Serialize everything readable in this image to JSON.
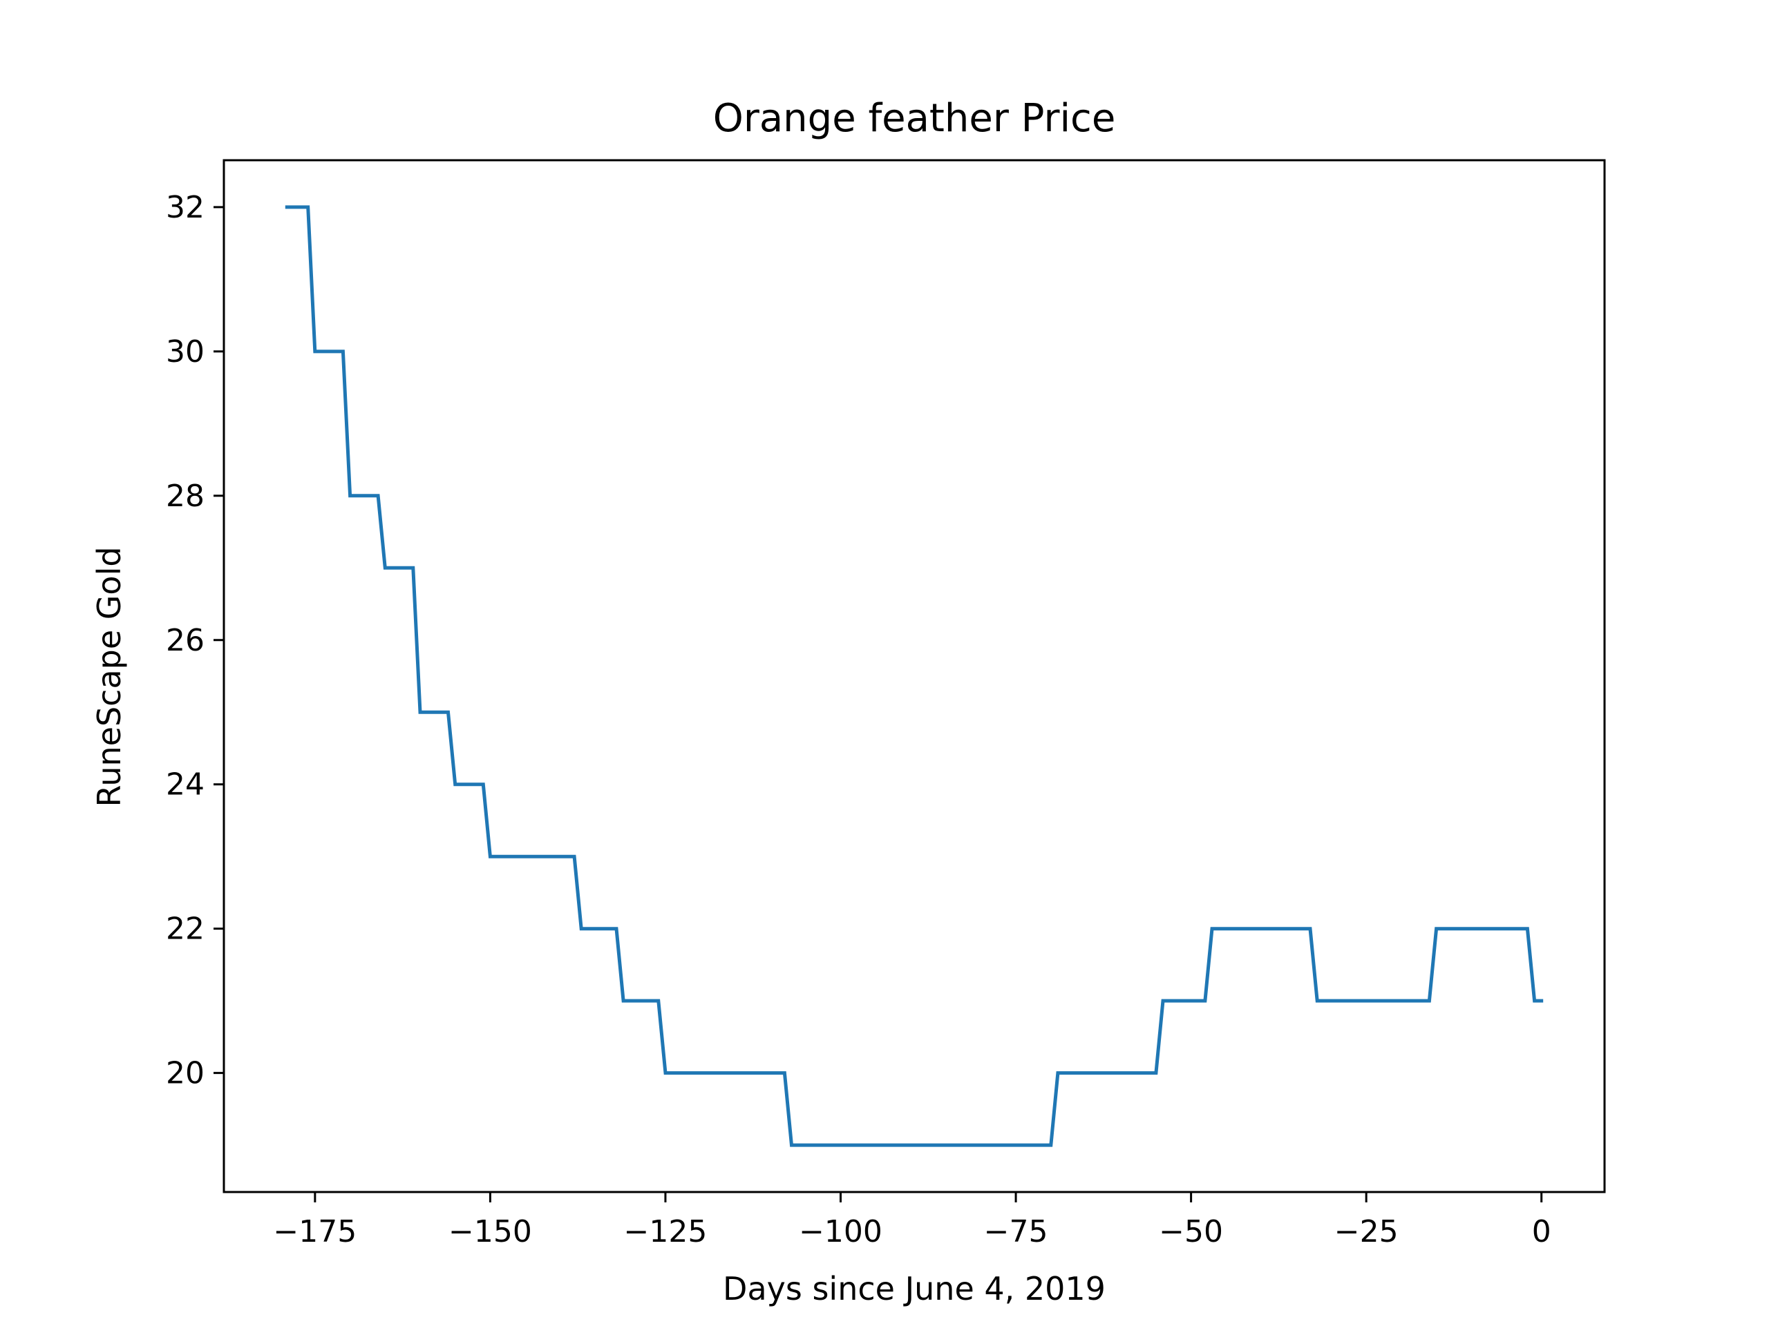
{
  "chart_data": {
    "type": "line",
    "title": "Orange feather Price",
    "xlabel": "Days since June 4, 2019",
    "ylabel": "RuneScape Gold",
    "xlim": [
      -188,
      9
    ],
    "ylim": [
      18.35,
      32.65
    ],
    "xticks": [
      -175,
      -150,
      -125,
      -100,
      -75,
      -50,
      -25,
      0
    ],
    "xtick_labels": [
      "−175",
      "−150",
      "−125",
      "−100",
      "−75",
      "−50",
      "−25",
      "0"
    ],
    "yticks": [
      20,
      22,
      24,
      26,
      28,
      30,
      32
    ],
    "ytick_labels": [
      "20",
      "22",
      "24",
      "26",
      "28",
      "30",
      "32"
    ],
    "grid": false,
    "legend": "none",
    "series": [
      {
        "color": "#1f77b4",
        "x": [
          -179,
          -176,
          -175,
          -171,
          -170,
          -166,
          -165,
          -161,
          -160,
          -156,
          -155,
          -151,
          -150,
          -138,
          -137,
          -132,
          -131,
          -126,
          -125,
          -108,
          -107,
          -70,
          -69,
          -55,
          -54,
          -48,
          -47,
          -33,
          -32,
          -16,
          -15,
          -2,
          -1,
          0
        ],
        "y": [
          32,
          32,
          30,
          30,
          28,
          28,
          27,
          27,
          25,
          25,
          24,
          24,
          23,
          23,
          22,
          22,
          21,
          21,
          20,
          20,
          19,
          19,
          20,
          20,
          21,
          21,
          22,
          22,
          21,
          21,
          22,
          22,
          21,
          21
        ]
      }
    ]
  }
}
